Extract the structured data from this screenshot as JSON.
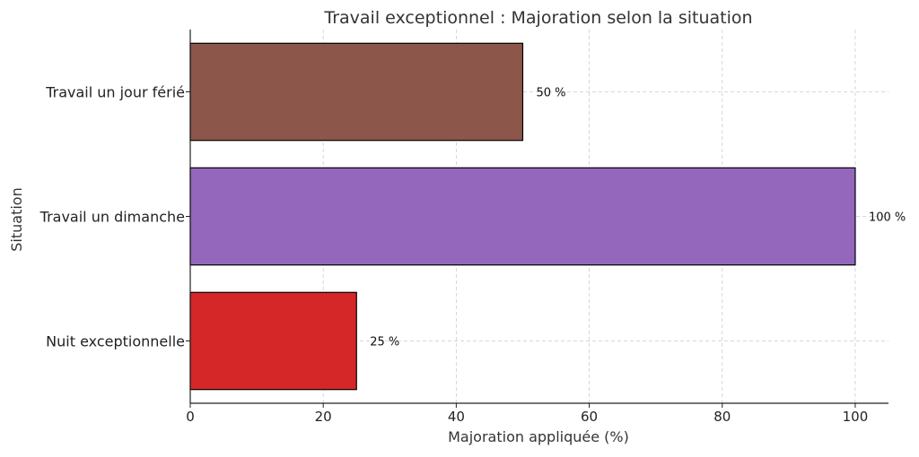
{
  "chart_data": {
    "type": "bar",
    "orientation": "horizontal",
    "title": "Travail exceptionnel : Majoration selon la situation",
    "xlabel": "Majoration appliquée (%)",
    "ylabel": "Situation",
    "categories": [
      "Nuit exceptionnelle",
      "Travail un dimanche",
      "Travail un jour férié"
    ],
    "values": [
      25,
      100,
      50
    ],
    "data_labels": [
      "25 %",
      "100 %",
      "50 %"
    ],
    "colors": [
      "#d62728",
      "#9467bd",
      "#8c564b"
    ],
    "xlim": [
      0,
      105
    ],
    "xticks": [
      0,
      20,
      40,
      60,
      80,
      100
    ],
    "grid": true
  }
}
